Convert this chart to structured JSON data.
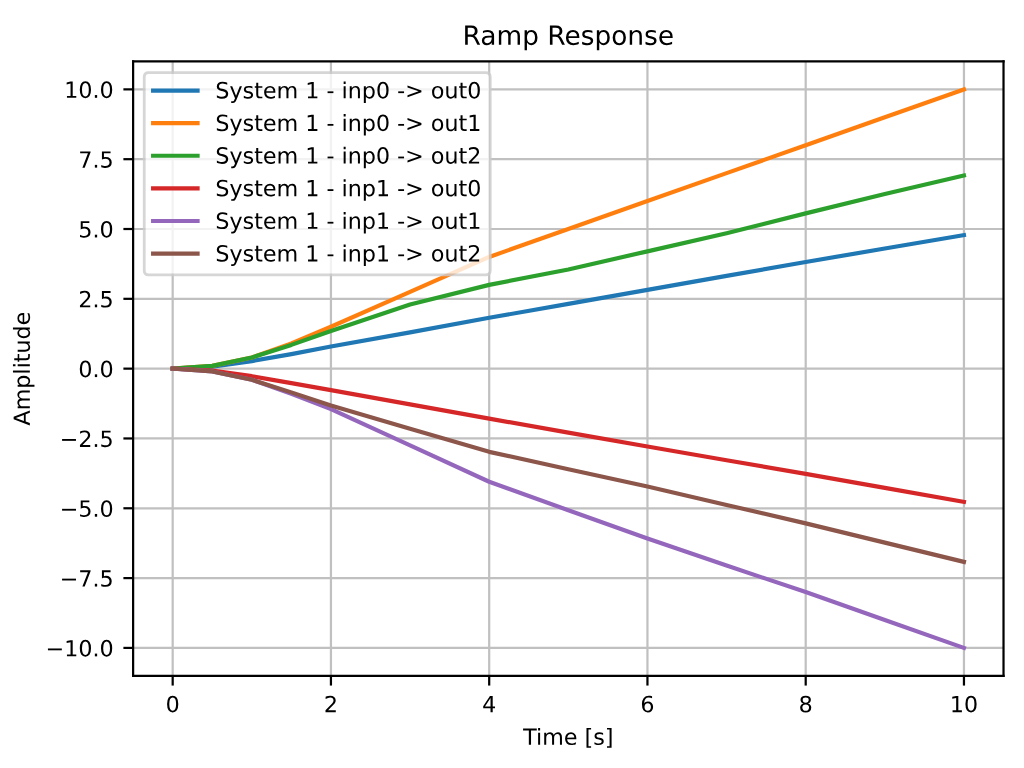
{
  "chart_data": {
    "type": "line",
    "title": "Ramp Response",
    "xlabel": "Time [s]",
    "ylabel": "Amplitude",
    "x": [
      0,
      0.5,
      1,
      1.5,
      2,
      3,
      4,
      5,
      6,
      7,
      8,
      9,
      10
    ],
    "series": [
      {
        "name": "System 1 - inp0 -> out0",
        "color": "#1f77b4",
        "values": [
          0,
          0.07,
          0.27,
          0.52,
          0.79,
          1.3,
          1.82,
          2.32,
          2.82,
          3.32,
          3.82,
          4.3,
          4.78
        ]
      },
      {
        "name": "System 1 - inp0 -> out1",
        "color": "#ff7f0e",
        "values": [
          0,
          0.1,
          0.4,
          0.9,
          1.5,
          2.75,
          4.0,
          5.0,
          6.0,
          7.0,
          8.0,
          9.0,
          10.0
        ]
      },
      {
        "name": "System 1 - inp0 -> out2",
        "color": "#2ca02c",
        "values": [
          0,
          0.1,
          0.4,
          0.85,
          1.35,
          2.3,
          3.0,
          3.55,
          4.2,
          4.85,
          5.56,
          6.25,
          6.92
        ]
      },
      {
        "name": "System 1 - inp1 -> out0",
        "color": "#d62728",
        "values": [
          0,
          -0.07,
          -0.27,
          -0.52,
          -0.77,
          -1.28,
          -1.79,
          -2.29,
          -2.79,
          -3.28,
          -3.77,
          -4.27,
          -4.77
        ]
      },
      {
        "name": "System 1 - inp1 -> out1",
        "color": "#9467bd",
        "values": [
          0,
          -0.1,
          -0.4,
          -0.9,
          -1.45,
          -2.75,
          -4.05,
          -5.07,
          -6.08,
          -7.05,
          -8.0,
          -9.0,
          -10.0
        ]
      },
      {
        "name": "System 1 - inp1 -> out2",
        "color": "#8c564b",
        "values": [
          0,
          -0.1,
          -0.4,
          -0.85,
          -1.32,
          -2.15,
          -2.98,
          -3.6,
          -4.22,
          -4.88,
          -5.54,
          -6.23,
          -6.92
        ]
      }
    ],
    "xlim": [
      -0.5,
      10.5
    ],
    "xticks": [
      0,
      2,
      4,
      6,
      8,
      10
    ],
    "ylim": [
      -11,
      11
    ],
    "yticks": [
      {
        "value": -10,
        "label": "−10.0"
      },
      {
        "value": -7.5,
        "label": "−7.5"
      },
      {
        "value": -5,
        "label": "−5.0"
      },
      {
        "value": -2.5,
        "label": "−2.5"
      },
      {
        "value": 0,
        "label": "0.0"
      },
      {
        "value": 2.5,
        "label": "2.5"
      },
      {
        "value": 5,
        "label": "5.0"
      },
      {
        "value": 7.5,
        "label": "7.5"
      },
      {
        "value": 10,
        "label": "10.0"
      }
    ],
    "grid": true,
    "legend": "top left"
  }
}
